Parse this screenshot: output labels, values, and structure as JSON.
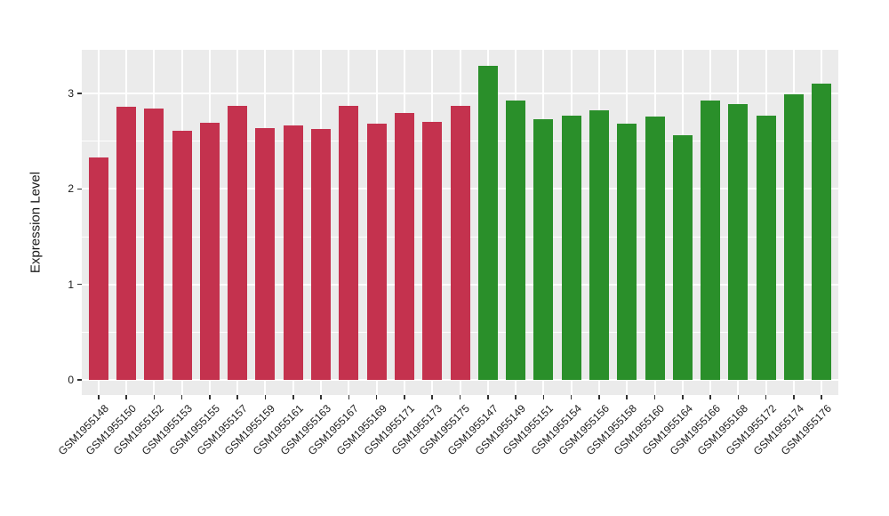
{
  "colors": {
    "panel_background": "#EBEBEB",
    "gridline": "#FFFFFF",
    "tick_mark": "#333333",
    "axis_text": "#1A1A1A",
    "group_red": "#C4324E",
    "group_green": "#2A8F2A"
  },
  "chart_data": {
    "type": "bar",
    "title": "",
    "xlabel": "",
    "ylabel": "Expression Level",
    "ylim": [
      -0.16,
      3.46
    ],
    "yticks": [
      0,
      1,
      2,
      3
    ],
    "yticks_minor": [
      0.5,
      1.5,
      2.5
    ],
    "grid": "on",
    "legend": "none",
    "bar_groups": {
      "red": "#C4324E",
      "green": "#2A8F2A"
    },
    "bars": [
      {
        "label": "GSM1955148",
        "value": 2.33,
        "group": "red"
      },
      {
        "label": "GSM1955150",
        "value": 2.86,
        "group": "red"
      },
      {
        "label": "GSM1955152",
        "value": 2.84,
        "group": "red"
      },
      {
        "label": "GSM1955153",
        "value": 2.61,
        "group": "red"
      },
      {
        "label": "GSM1955155",
        "value": 2.69,
        "group": "red"
      },
      {
        "label": "GSM1955157",
        "value": 2.87,
        "group": "red"
      },
      {
        "label": "GSM1955159",
        "value": 2.64,
        "group": "red"
      },
      {
        "label": "GSM1955161",
        "value": 2.67,
        "group": "red"
      },
      {
        "label": "GSM1955163",
        "value": 2.63,
        "group": "red"
      },
      {
        "label": "GSM1955167",
        "value": 2.87,
        "group": "red"
      },
      {
        "label": "GSM1955169",
        "value": 2.68,
        "group": "red"
      },
      {
        "label": "GSM1955171",
        "value": 2.8,
        "group": "red"
      },
      {
        "label": "GSM1955173",
        "value": 2.7,
        "group": "red"
      },
      {
        "label": "GSM1955175",
        "value": 2.87,
        "group": "red"
      },
      {
        "label": "GSM1955147",
        "value": 3.29,
        "group": "green"
      },
      {
        "label": "GSM1955149",
        "value": 2.93,
        "group": "green"
      },
      {
        "label": "GSM1955151",
        "value": 2.73,
        "group": "green"
      },
      {
        "label": "GSM1955154",
        "value": 2.77,
        "group": "green"
      },
      {
        "label": "GSM1955156",
        "value": 2.82,
        "group": "green"
      },
      {
        "label": "GSM1955158",
        "value": 2.68,
        "group": "green"
      },
      {
        "label": "GSM1955160",
        "value": 2.76,
        "group": "green"
      },
      {
        "label": "GSM1955164",
        "value": 2.56,
        "group": "green"
      },
      {
        "label": "GSM1955166",
        "value": 2.93,
        "group": "green"
      },
      {
        "label": "GSM1955168",
        "value": 2.89,
        "group": "green"
      },
      {
        "label": "GSM1955172",
        "value": 2.77,
        "group": "green"
      },
      {
        "label": "GSM1955174",
        "value": 2.99,
        "group": "green"
      },
      {
        "label": "GSM1955176",
        "value": 3.1,
        "group": "green"
      }
    ]
  }
}
